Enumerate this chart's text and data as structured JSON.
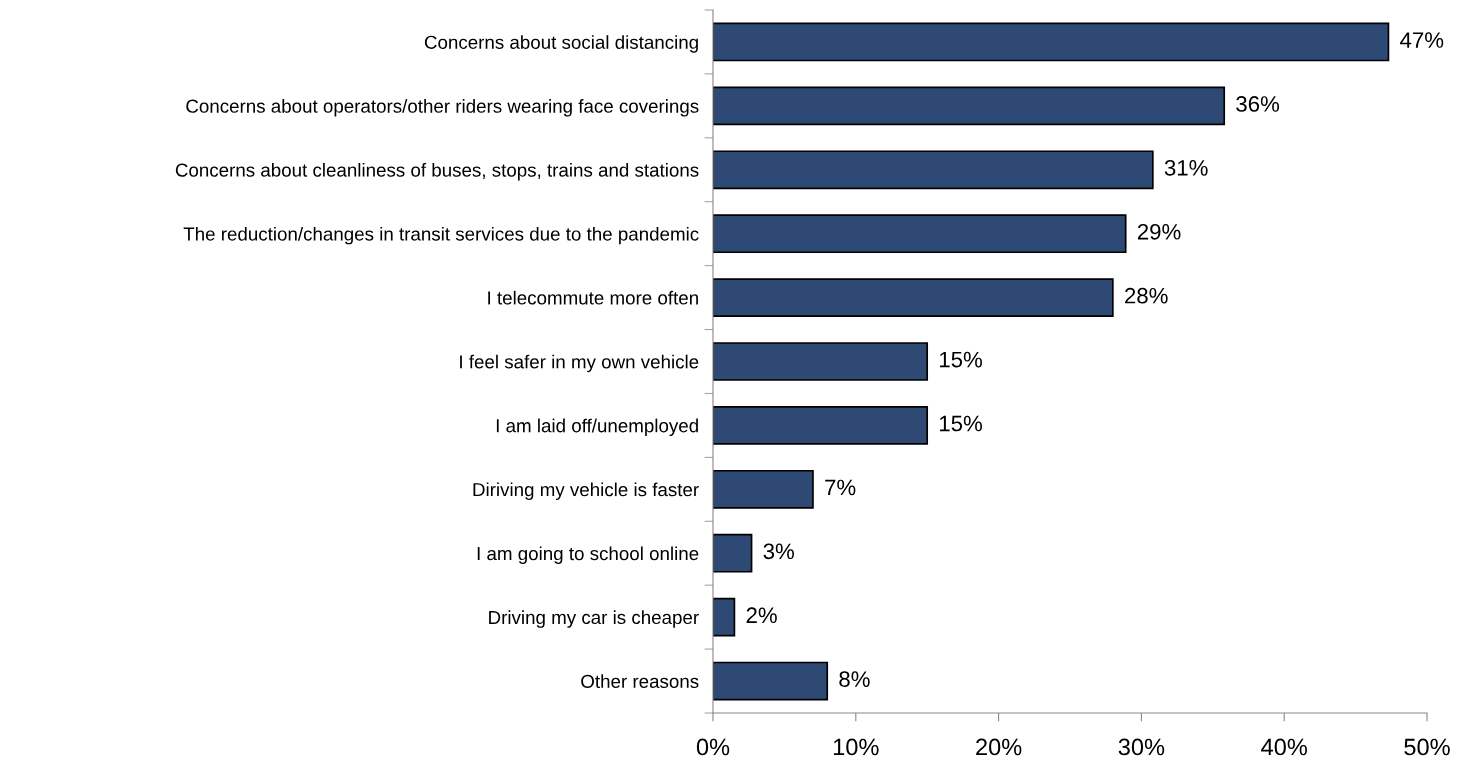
{
  "chart_data": {
    "type": "bar",
    "orientation": "horizontal",
    "categories": [
      "Concerns about social distancing",
      "Concerns about operators/other riders wearing face coverings",
      "Concerns about cleanliness of buses, stops, trains and stations",
      "The reduction/changes in transit services due to the pandemic",
      "I telecommute more often",
      "I feel safer in my own vehicle",
      "I am laid off/unemployed",
      "Diriving my vehicle is faster",
      "I am going to school online",
      "Driving my car is cheaper",
      "Other reasons"
    ],
    "values": [
      47.3,
      35.8,
      30.8,
      28.9,
      28.0,
      15.0,
      15.0,
      7.0,
      2.7,
      1.5,
      8.0
    ],
    "value_labels": [
      "47%",
      "36%",
      "31%",
      "29%",
      "28%",
      "15%",
      "15%",
      "7%",
      "3%",
      "2%",
      "8%"
    ],
    "color": "#2e4a74",
    "xlim": [
      0,
      50
    ],
    "xticks": [
      {
        "value": 0,
        "label": "0%"
      },
      {
        "value": 10,
        "label": "10%"
      },
      {
        "value": 20,
        "label": "20%"
      },
      {
        "value": 30,
        "label": "30%"
      },
      {
        "value": 40,
        "label": "40%"
      },
      {
        "value": 50,
        "label": "50%"
      }
    ],
    "grid": false,
    "legend": false
  }
}
